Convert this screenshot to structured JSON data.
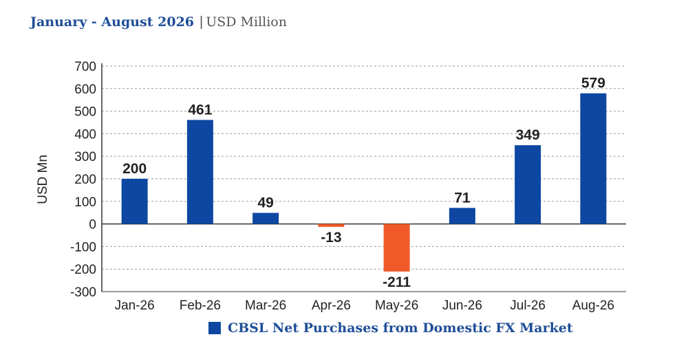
{
  "header": {
    "title": "January - August 2026",
    "separator": "|",
    "unit": "USD Million"
  },
  "colors": {
    "positive": "#0d47a1",
    "negative": "#f05a28",
    "title": "#1f4e98",
    "grid": "#9a9a9a"
  },
  "chart_data": {
    "type": "bar",
    "title": "",
    "xlabel": "",
    "ylabel": "USD Mn",
    "categories": [
      "Jan-26",
      "Feb-26",
      "Mar-26",
      "Apr-26",
      "May-26",
      "Jun-26",
      "Jul-26",
      "Aug-26"
    ],
    "series": [
      {
        "name": "CBSL Net Purchases from Domestic FX Market",
        "values": [
          200,
          461,
          49,
          -13,
          -211,
          71,
          349,
          579
        ]
      }
    ],
    "ylim": [
      -300,
      700
    ],
    "yticks": [
      700,
      600,
      500,
      400,
      300,
      200,
      100,
      0,
      -100,
      -200,
      -300
    ],
    "grid": true,
    "grid_style": "dashed",
    "legend_position": "bottom-center",
    "data_labels": true
  }
}
